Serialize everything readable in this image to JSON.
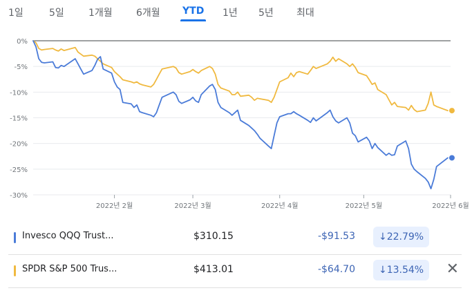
{
  "tabs": [
    {
      "label": "1일",
      "active": false
    },
    {
      "label": "5일",
      "active": false
    },
    {
      "label": "1개월",
      "active": false
    },
    {
      "label": "6개월",
      "active": false
    },
    {
      "label": "YTD",
      "active": true
    },
    {
      "label": "1년",
      "active": false
    },
    {
      "label": "5년",
      "active": false
    },
    {
      "label": "최대",
      "active": false
    }
  ],
  "chart_data": {
    "type": "line",
    "ylim": [
      -30,
      0
    ],
    "y_ticks": [
      0,
      -5,
      -10,
      -15,
      -20,
      -25,
      -30
    ],
    "y_tick_labels": [
      "0%",
      "-5%",
      "-10%",
      "-15%",
      "-20%",
      "-25%",
      "-30%"
    ],
    "x_range": [
      "2022-01-03",
      "2022-06-01"
    ],
    "x_ticks": [
      "2022-02-01",
      "2022-03-01",
      "2022-04-01",
      "2022-05-01",
      "2022-06-01"
    ],
    "x_tick_labels": [
      "2022년 2월",
      "2022년 3월",
      "2022년 4월",
      "2022년 5월",
      "2022년 6월"
    ],
    "series": [
      {
        "name": "Invesco QQQ Trust...",
        "color": "#4a7bd8",
        "points": [
          [
            "2022-01-03",
            0
          ],
          [
            "2022-01-04",
            -1.2
          ],
          [
            "2022-01-05",
            -3.5
          ],
          [
            "2022-01-06",
            -4.2
          ],
          [
            "2022-01-07",
            -4.3
          ],
          [
            "2022-01-10",
            -4.1
          ],
          [
            "2022-01-11",
            -5.2
          ],
          [
            "2022-01-12",
            -5.3
          ],
          [
            "2022-01-13",
            -4.8
          ],
          [
            "2022-01-14",
            -5.0
          ],
          [
            "2022-01-18",
            -3.5
          ],
          [
            "2022-01-19",
            -4.5
          ],
          [
            "2022-01-20",
            -5.5
          ],
          [
            "2022-01-21",
            -6.5
          ],
          [
            "2022-01-24",
            -5.8
          ],
          [
            "2022-01-25",
            -4.8
          ],
          [
            "2022-01-26",
            -3.6
          ],
          [
            "2022-01-27",
            -3.1
          ],
          [
            "2022-01-28",
            -5.5
          ],
          [
            "2022-01-31",
            -6.3
          ],
          [
            "2022-02-01",
            -8.0
          ],
          [
            "2022-02-02",
            -9.0
          ],
          [
            "2022-02-03",
            -9.5
          ],
          [
            "2022-02-04",
            -12.0
          ],
          [
            "2022-02-07",
            -12.3
          ],
          [
            "2022-02-08",
            -13.0
          ],
          [
            "2022-02-09",
            -12.5
          ],
          [
            "2022-02-10",
            -13.8
          ],
          [
            "2022-02-11",
            -14.0
          ],
          [
            "2022-02-14",
            -14.5
          ],
          [
            "2022-02-15",
            -14.8
          ],
          [
            "2022-02-16",
            -14.0
          ],
          [
            "2022-02-17",
            -12.5
          ],
          [
            "2022-02-18",
            -11.0
          ],
          [
            "2022-02-22",
            -10.0
          ],
          [
            "2022-02-23",
            -10.5
          ],
          [
            "2022-02-24",
            -11.8
          ],
          [
            "2022-02-25",
            -12.2
          ],
          [
            "2022-02-28",
            -11.5
          ],
          [
            "2022-03-01",
            -11.0
          ],
          [
            "2022-03-02",
            -11.7
          ],
          [
            "2022-03-03",
            -12.0
          ],
          [
            "2022-03-04",
            -10.5
          ],
          [
            "2022-03-07",
            -8.8
          ],
          [
            "2022-03-08",
            -8.5
          ],
          [
            "2022-03-09",
            -9.5
          ],
          [
            "2022-03-10",
            -12.0
          ],
          [
            "2022-03-11",
            -13.0
          ],
          [
            "2022-03-14",
            -14.0
          ],
          [
            "2022-03-15",
            -14.5
          ],
          [
            "2022-03-16",
            -14.0
          ],
          [
            "2022-03-17",
            -13.5
          ],
          [
            "2022-03-18",
            -15.5
          ],
          [
            "2022-03-21",
            -16.5
          ],
          [
            "2022-03-22",
            -17.0
          ],
          [
            "2022-03-23",
            -17.5
          ],
          [
            "2022-03-24",
            -18.2
          ],
          [
            "2022-03-25",
            -19.0
          ],
          [
            "2022-03-28",
            -20.5
          ],
          [
            "2022-03-29",
            -21.0
          ],
          [
            "2022-03-30",
            -18.5
          ],
          [
            "2022-03-31",
            -16.0
          ],
          [
            "2022-04-01",
            -14.8
          ],
          [
            "2022-04-04",
            -14.2
          ],
          [
            "2022-04-05",
            -14.2
          ],
          [
            "2022-04-06",
            -13.8
          ],
          [
            "2022-04-07",
            -14.2
          ],
          [
            "2022-04-08",
            -14.5
          ],
          [
            "2022-04-11",
            -15.5
          ],
          [
            "2022-04-12",
            -15.9
          ],
          [
            "2022-04-13",
            -15.0
          ],
          [
            "2022-04-14",
            -15.6
          ],
          [
            "2022-04-18",
            -14.0
          ],
          [
            "2022-04-19",
            -13.5
          ],
          [
            "2022-04-20",
            -14.8
          ],
          [
            "2022-04-21",
            -15.6
          ],
          [
            "2022-04-22",
            -16.0
          ],
          [
            "2022-04-25",
            -15.0
          ],
          [
            "2022-04-26",
            -16.0
          ],
          [
            "2022-04-27",
            -18.0
          ],
          [
            "2022-04-28",
            -18.5
          ],
          [
            "2022-04-29",
            -19.7
          ],
          [
            "2022-05-02",
            -18.8
          ],
          [
            "2022-05-03",
            -19.5
          ],
          [
            "2022-05-04",
            -21.0
          ],
          [
            "2022-05-05",
            -20.0
          ],
          [
            "2022-05-06",
            -20.8
          ],
          [
            "2022-05-09",
            -22.3
          ],
          [
            "2022-05-10",
            -21.9
          ],
          [
            "2022-05-11",
            -22.3
          ],
          [
            "2022-05-12",
            -22.2
          ],
          [
            "2022-05-13",
            -20.5
          ],
          [
            "2022-05-16",
            -19.5
          ],
          [
            "2022-05-17",
            -21.0
          ],
          [
            "2022-05-18",
            -24.0
          ],
          [
            "2022-05-19",
            -25.0
          ],
          [
            "2022-05-20",
            -25.5
          ],
          [
            "2022-05-23",
            -26.8
          ],
          [
            "2022-05-24",
            -27.5
          ],
          [
            "2022-05-25",
            -28.8
          ],
          [
            "2022-05-26",
            -27.0
          ],
          [
            "2022-05-27",
            -24.5
          ],
          [
            "2022-05-31",
            -22.8
          ]
        ]
      },
      {
        "name": "SPDR S&P 500 Trus...",
        "color": "#f0b93f",
        "points": [
          [
            "2022-01-03",
            0
          ],
          [
            "2022-01-04",
            -0.4
          ],
          [
            "2022-01-05",
            -1.5
          ],
          [
            "2022-01-06",
            -1.8
          ],
          [
            "2022-01-07",
            -1.7
          ],
          [
            "2022-01-10",
            -1.5
          ],
          [
            "2022-01-11",
            -1.8
          ],
          [
            "2022-01-12",
            -2.0
          ],
          [
            "2022-01-13",
            -1.6
          ],
          [
            "2022-01-14",
            -1.9
          ],
          [
            "2022-01-18",
            -1.3
          ],
          [
            "2022-01-19",
            -2.2
          ],
          [
            "2022-01-20",
            -2.6
          ],
          [
            "2022-01-21",
            -3.0
          ],
          [
            "2022-01-24",
            -2.8
          ],
          [
            "2022-01-25",
            -3.0
          ],
          [
            "2022-01-26",
            -3.5
          ],
          [
            "2022-01-27",
            -4.0
          ],
          [
            "2022-01-28",
            -4.5
          ],
          [
            "2022-01-31",
            -5.2
          ],
          [
            "2022-02-01",
            -6.0
          ],
          [
            "2022-02-02",
            -6.5
          ],
          [
            "2022-02-03",
            -7.0
          ],
          [
            "2022-02-04",
            -7.6
          ],
          [
            "2022-02-07",
            -8.0
          ],
          [
            "2022-02-08",
            -8.2
          ],
          [
            "2022-02-09",
            -8.0
          ],
          [
            "2022-02-10",
            -8.4
          ],
          [
            "2022-02-11",
            -8.6
          ],
          [
            "2022-02-14",
            -9.0
          ],
          [
            "2022-02-15",
            -8.5
          ],
          [
            "2022-02-16",
            -7.5
          ],
          [
            "2022-02-17",
            -6.5
          ],
          [
            "2022-02-18",
            -5.5
          ],
          [
            "2022-02-22",
            -5.0
          ],
          [
            "2022-02-23",
            -5.3
          ],
          [
            "2022-02-24",
            -6.2
          ],
          [
            "2022-02-25",
            -6.5
          ],
          [
            "2022-02-28",
            -6.0
          ],
          [
            "2022-03-01",
            -5.6
          ],
          [
            "2022-03-02",
            -6.0
          ],
          [
            "2022-03-03",
            -6.3
          ],
          [
            "2022-03-04",
            -5.8
          ],
          [
            "2022-03-07",
            -5.0
          ],
          [
            "2022-03-08",
            -5.4
          ],
          [
            "2022-03-09",
            -6.5
          ],
          [
            "2022-03-10",
            -8.5
          ],
          [
            "2022-03-11",
            -9.2
          ],
          [
            "2022-03-14",
            -9.8
          ],
          [
            "2022-03-15",
            -10.5
          ],
          [
            "2022-03-16",
            -10.5
          ],
          [
            "2022-03-17",
            -10.0
          ],
          [
            "2022-03-18",
            -10.8
          ],
          [
            "2022-03-21",
            -10.6
          ],
          [
            "2022-03-22",
            -11.0
          ],
          [
            "2022-03-23",
            -11.6
          ],
          [
            "2022-03-24",
            -11.2
          ],
          [
            "2022-03-25",
            -11.3
          ],
          [
            "2022-03-28",
            -11.6
          ],
          [
            "2022-03-29",
            -12.0
          ],
          [
            "2022-03-30",
            -11.0
          ],
          [
            "2022-03-31",
            -9.5
          ],
          [
            "2022-04-01",
            -8.0
          ],
          [
            "2022-04-04",
            -7.2
          ],
          [
            "2022-04-05",
            -6.3
          ],
          [
            "2022-04-06",
            -7.0
          ],
          [
            "2022-04-07",
            -6.2
          ],
          [
            "2022-04-08",
            -6.0
          ],
          [
            "2022-04-11",
            -6.5
          ],
          [
            "2022-04-12",
            -5.8
          ],
          [
            "2022-04-13",
            -5.0
          ],
          [
            "2022-04-14",
            -5.4
          ],
          [
            "2022-04-18",
            -4.5
          ],
          [
            "2022-04-19",
            -4.0
          ],
          [
            "2022-04-20",
            -3.2
          ],
          [
            "2022-04-21",
            -4.0
          ],
          [
            "2022-04-22",
            -3.5
          ],
          [
            "2022-04-25",
            -4.5
          ],
          [
            "2022-04-26",
            -5.0
          ],
          [
            "2022-04-27",
            -4.5
          ],
          [
            "2022-04-28",
            -5.2
          ],
          [
            "2022-04-29",
            -6.2
          ],
          [
            "2022-05-02",
            -6.8
          ],
          [
            "2022-05-03",
            -7.6
          ],
          [
            "2022-05-04",
            -8.5
          ],
          [
            "2022-05-05",
            -8.2
          ],
          [
            "2022-05-06",
            -9.5
          ],
          [
            "2022-05-09",
            -10.5
          ],
          [
            "2022-05-10",
            -11.5
          ],
          [
            "2022-05-11",
            -12.5
          ],
          [
            "2022-05-12",
            -12.0
          ],
          [
            "2022-05-13",
            -12.8
          ],
          [
            "2022-05-16",
            -13.0
          ],
          [
            "2022-05-17",
            -13.5
          ],
          [
            "2022-05-18",
            -12.6
          ],
          [
            "2022-05-19",
            -13.4
          ],
          [
            "2022-05-20",
            -13.8
          ],
          [
            "2022-05-23",
            -13.5
          ],
          [
            "2022-05-24",
            -12.2
          ],
          [
            "2022-05-25",
            -10.0
          ],
          [
            "2022-05-26",
            -12.5
          ],
          [
            "2022-05-27",
            -12.8
          ],
          [
            "2022-05-31",
            -13.6
          ]
        ]
      }
    ]
  },
  "legend": [
    {
      "name": "Invesco QQQ Trust...",
      "price": "$310.15",
      "change": "-$91.53",
      "percent": "↓22.79%",
      "color": "#4a7bd8"
    },
    {
      "name": "SPDR S&P 500 Trus...",
      "price": "$413.01",
      "change": "-$64.70",
      "percent": "↓13.54%",
      "color": "#f0b93f",
      "close_label": "✕"
    }
  ]
}
